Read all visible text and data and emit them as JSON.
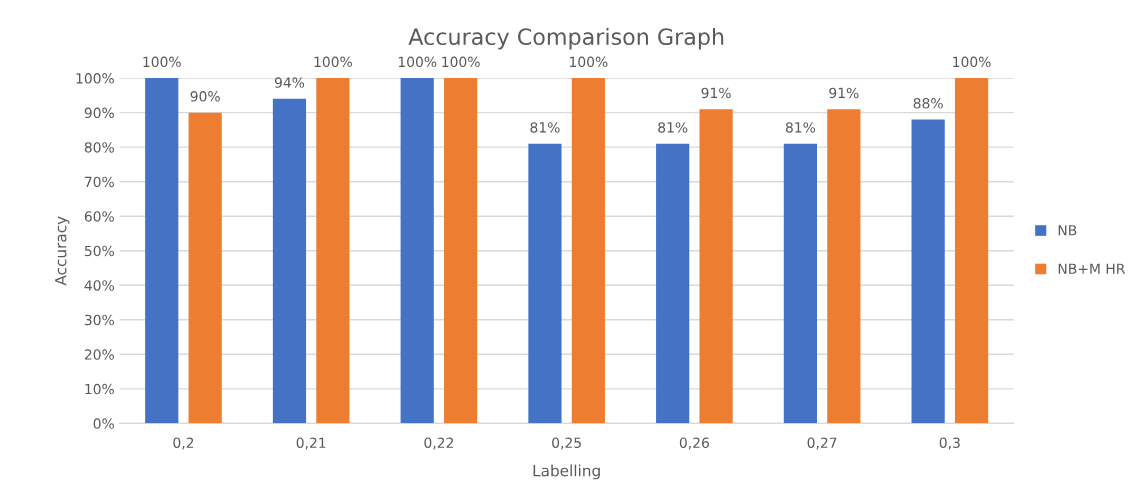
{
  "chart_data": {
    "type": "bar",
    "title": "Accuracy Comparison Graph",
    "xlabel": "Labelling",
    "ylabel": "Accuracy",
    "categories": [
      "0,2",
      "0,21",
      "0,22",
      "0,25",
      "0,26",
      "0,27",
      "0,3"
    ],
    "series": [
      {
        "name": "NB",
        "color": "#4472c4",
        "values": [
          100,
          94,
          100,
          81,
          81,
          81,
          88
        ],
        "value_labels": [
          "100%",
          "94%",
          "100%",
          "81%",
          "81%",
          "81%",
          "88%"
        ]
      },
      {
        "name": "NB+M HR",
        "color": "#ed7d31",
        "values": [
          90,
          100,
          100,
          100,
          91,
          91,
          100
        ],
        "value_labels": [
          "90%",
          "100%",
          "100%",
          "100%",
          "91%",
          "91%",
          "100%"
        ]
      }
    ],
    "ylim": [
      0,
      100
    ],
    "yticks": [
      {
        "value": 0,
        "label": "0%"
      },
      {
        "value": 10,
        "label": "10%"
      },
      {
        "value": 20,
        "label": "20%"
      },
      {
        "value": 30,
        "label": "30%"
      },
      {
        "value": 40,
        "label": "40%"
      },
      {
        "value": 50,
        "label": "50%"
      },
      {
        "value": 60,
        "label": "60%"
      },
      {
        "value": 70,
        "label": "70%"
      },
      {
        "value": 80,
        "label": "80%"
      },
      {
        "value": 90,
        "label": "90%"
      },
      {
        "value": 100,
        "label": "100%"
      }
    ],
    "grid": "y",
    "legend": "right"
  }
}
